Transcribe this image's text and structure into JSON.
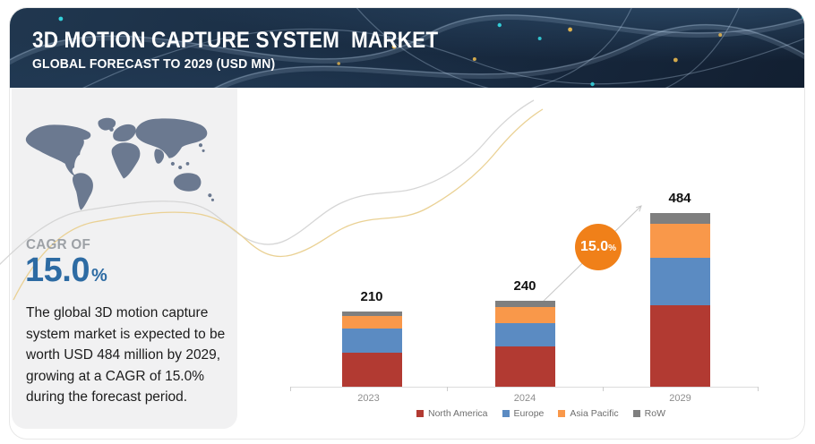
{
  "header": {
    "title": "3D MOTION CAPTURE SYSTEM  MARKET",
    "subtitle": "GLOBAL FORECAST TO 2029 (USD MN)"
  },
  "sidebar": {
    "cagr_label": "CAGR OF",
    "cagr_value": "15.0",
    "cagr_unit": "%",
    "description": "The global 3D motion capture system market is expected to be worth USD 484 million by 2029, growing at a CAGR of 15.0% during the forecast period."
  },
  "growth_badge": {
    "value": "15.0",
    "unit": "%",
    "color": "#f08019"
  },
  "colors": {
    "header_navy": "#182a40",
    "panel_gray": "#f1f1f2",
    "map_gray_blue": "#6b7990",
    "cagr_blue": "#2d6ba3",
    "wave_yellow": "#e9cf8e",
    "wave_gray": "#d2d2d2"
  },
  "chart_data": {
    "type": "bar",
    "subtype": "stacked",
    "categories": [
      "2023",
      "2024",
      "2029"
    ],
    "totals": [
      210,
      240,
      484
    ],
    "series": [
      {
        "name": "North America",
        "color": "#b23a32",
        "values": [
          95,
          112,
          228
        ]
      },
      {
        "name": "Europe",
        "color": "#5b8bc2",
        "values": [
          67,
          65,
          133
        ]
      },
      {
        "name": "Asia Pacific",
        "color": "#f9984a",
        "values": [
          35,
          45,
          93
        ]
      },
      {
        "name": "RoW",
        "color": "#7f7f7f",
        "values": [
          13,
          18,
          30
        ]
      }
    ],
    "ylabel": "USD MN",
    "grid": false,
    "legend_position": "bottom",
    "annotation_cagr": "15.0%"
  }
}
